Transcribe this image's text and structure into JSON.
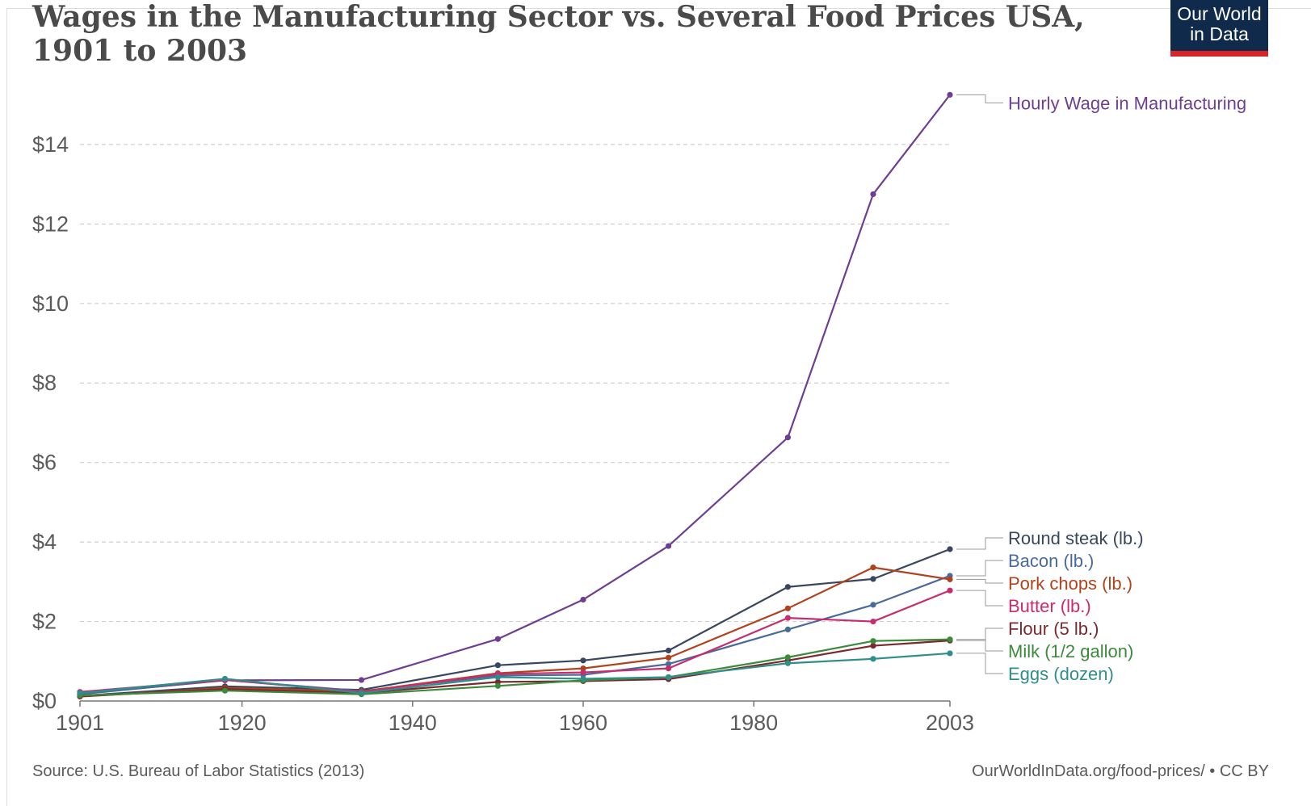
{
  "chart_data": {
    "type": "line",
    "title": "Wages in the Manufacturing Sector vs. Several Food Prices USA, 1901 to 2003",
    "xlabel": "",
    "ylabel": "",
    "xlim": [
      1901,
      2003
    ],
    "ylim": [
      0,
      15.4
    ],
    "x_ticks": [
      "1901",
      "1920",
      "1940",
      "1960",
      "1980",
      "2003"
    ],
    "x_tick_values": [
      1901,
      1920,
      1940,
      1960,
      1980,
      2003
    ],
    "y_ticks": [
      "$0",
      "$2",
      "$4",
      "$6",
      "$8",
      "$10",
      "$12",
      "$14"
    ],
    "y_tick_values": [
      0,
      2,
      4,
      6,
      8,
      10,
      12,
      14
    ],
    "x": [
      1901,
      1918,
      1934,
      1950,
      1960,
      1970,
      1984,
      1994,
      2003
    ],
    "series": [
      {
        "name": "Hourly Wage in Manufacturing",
        "color": "#6d3e91",
        "values": [
          0.18,
          0.52,
          0.53,
          1.56,
          2.55,
          3.9,
          6.63,
          12.75,
          15.25
        ]
      },
      {
        "name": "Round steak (lb.)",
        "color": "#38465e",
        "values": [
          0.13,
          0.37,
          0.28,
          0.9,
          1.02,
          1.27,
          2.87,
          3.07,
          3.82
        ]
      },
      {
        "name": "Bacon (lb.)",
        "color": "#4a6a9b",
        "values": [
          0.17,
          0.53,
          0.25,
          0.64,
          0.66,
          0.93,
          1.8,
          2.42,
          3.15
        ]
      },
      {
        "name": "Pork chops (lb.)",
        "color": "#b0421c",
        "values": [
          0.11,
          0.33,
          0.24,
          0.7,
          0.82,
          1.09,
          2.33,
          3.36,
          3.06
        ]
      },
      {
        "name": "Butter (lb.)",
        "color": "#c82c6d",
        "values": [
          0.23,
          0.53,
          0.23,
          0.68,
          0.72,
          0.82,
          2.09,
          2.0,
          2.78
        ]
      },
      {
        "name": "Flour (5 lb.)",
        "color": "#7a2a2e",
        "values": [
          0.12,
          0.3,
          0.2,
          0.48,
          0.5,
          0.55,
          1.02,
          1.39,
          1.52
        ]
      },
      {
        "name": "Milk (1/2 gallon)",
        "color": "#3c8a3b",
        "values": [
          0.14,
          0.26,
          0.17,
          0.38,
          0.52,
          0.6,
          1.1,
          1.51,
          1.55
        ]
      },
      {
        "name": "Eggs (dozen)",
        "color": "#2f8e8a",
        "values": [
          0.2,
          0.56,
          0.2,
          0.6,
          0.56,
          0.6,
          0.95,
          1.06,
          1.2
        ]
      }
    ]
  },
  "header": {
    "logo_line1": "Our World",
    "logo_line2": "in Data"
  },
  "footer": {
    "source": "Source: U.S. Bureau of Labor Statistics (2013)",
    "credit": "OurWorldInData.org/food-prices/ • CC BY"
  }
}
